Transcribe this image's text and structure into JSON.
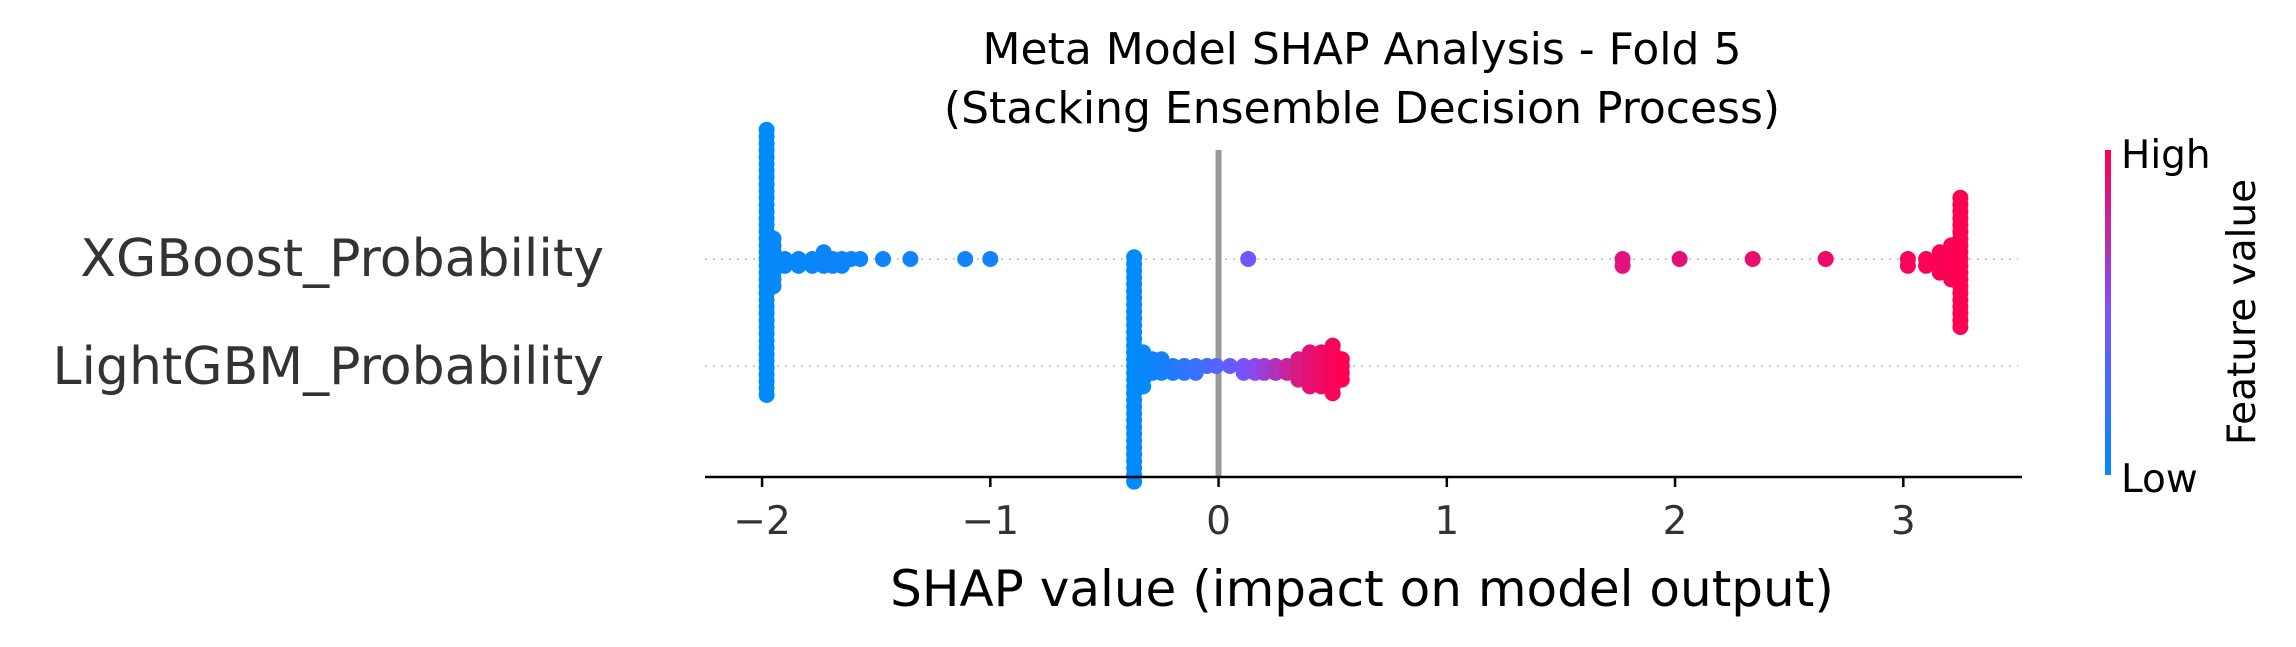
{
  "chart_data": {
    "type": "scatter",
    "subtype": "shap-beeswarm",
    "title_lines": [
      "Meta Model SHAP Analysis - Fold 5",
      "(Stacking Ensemble Decision Process)"
    ],
    "xlabel": "SHAP value (impact on model output)",
    "xlim": [
      -2.25,
      3.52
    ],
    "xticks": [
      -2,
      -1,
      0,
      1,
      2,
      3
    ],
    "xtick_labels": [
      "−2",
      "−1",
      "0",
      "1",
      "2",
      "3"
    ],
    "features": [
      "XGBoost_Probability",
      "LightGBM_Probability"
    ],
    "series": [
      {
        "name": "XGBoost_Probability",
        "points": [
          {
            "x": -1.98,
            "v": 0.0,
            "n": 40
          },
          {
            "x": -1.95,
            "v": 0.02,
            "n": 8
          },
          {
            "x": -1.9,
            "v": 0.03,
            "n": 2
          },
          {
            "x": -1.84,
            "v": 0.04,
            "n": 2
          },
          {
            "x": -1.78,
            "v": 0.04,
            "n": 2
          },
          {
            "x": -1.73,
            "v": 0.05,
            "n": 3
          },
          {
            "x": -1.69,
            "v": 0.05,
            "n": 2
          },
          {
            "x": -1.65,
            "v": 0.05,
            "n": 2
          },
          {
            "x": -1.61,
            "v": 0.05,
            "n": 1
          },
          {
            "x": -1.57,
            "v": 0.06,
            "n": 1
          },
          {
            "x": -1.47,
            "v": 0.06,
            "n": 1
          },
          {
            "x": -1.35,
            "v": 0.06,
            "n": 1
          },
          {
            "x": -1.11,
            "v": 0.07,
            "n": 1
          },
          {
            "x": -1.0,
            "v": 0.07,
            "n": 1
          },
          {
            "x": 0.13,
            "v": 0.45,
            "n": 1
          },
          {
            "x": 1.77,
            "v": 0.88,
            "n": 2
          },
          {
            "x": 2.02,
            "v": 0.9,
            "n": 1
          },
          {
            "x": 2.34,
            "v": 0.92,
            "n": 1
          },
          {
            "x": 2.66,
            "v": 0.94,
            "n": 1
          },
          {
            "x": 3.02,
            "v": 0.97,
            "n": 2
          },
          {
            "x": 3.1,
            "v": 0.98,
            "n": 2
          },
          {
            "x": 3.16,
            "v": 0.99,
            "n": 4
          },
          {
            "x": 3.21,
            "v": 1.0,
            "n": 6
          },
          {
            "x": 3.25,
            "v": 1.0,
            "n": 20
          }
        ]
      },
      {
        "name": "LightGBM_Probability",
        "points": [
          {
            "x": -0.37,
            "v": 0.0,
            "n": 34
          },
          {
            "x": -0.33,
            "v": 0.03,
            "n": 6
          },
          {
            "x": -0.29,
            "v": 0.05,
            "n": 3
          },
          {
            "x": -0.25,
            "v": 0.08,
            "n": 3
          },
          {
            "x": -0.2,
            "v": 0.12,
            "n": 2
          },
          {
            "x": -0.15,
            "v": 0.18,
            "n": 2
          },
          {
            "x": -0.1,
            "v": 0.22,
            "n": 2
          },
          {
            "x": -0.05,
            "v": 0.28,
            "n": 1
          },
          {
            "x": -0.01,
            "v": 0.33,
            "n": 1
          },
          {
            "x": 0.05,
            "v": 0.4,
            "n": 1
          },
          {
            "x": 0.11,
            "v": 0.48,
            "n": 2
          },
          {
            "x": 0.16,
            "v": 0.55,
            "n": 2
          },
          {
            "x": 0.2,
            "v": 0.62,
            "n": 2
          },
          {
            "x": 0.25,
            "v": 0.7,
            "n": 2
          },
          {
            "x": 0.3,
            "v": 0.78,
            "n": 2
          },
          {
            "x": 0.35,
            "v": 0.85,
            "n": 4
          },
          {
            "x": 0.4,
            "v": 0.9,
            "n": 6
          },
          {
            "x": 0.45,
            "v": 0.94,
            "n": 6
          },
          {
            "x": 0.5,
            "v": 0.97,
            "n": 8
          },
          {
            "x": 0.54,
            "v": 1.0,
            "n": 4
          }
        ]
      }
    ],
    "colorbar": {
      "label": "Feature value",
      "high_label": "High",
      "low_label": "Low",
      "low_color": "#008bfb",
      "mid_color": "#7c52ff",
      "high_color": "#ff0052"
    },
    "zero_line_color": "#999999",
    "grid_line_color": "#cccccc"
  }
}
